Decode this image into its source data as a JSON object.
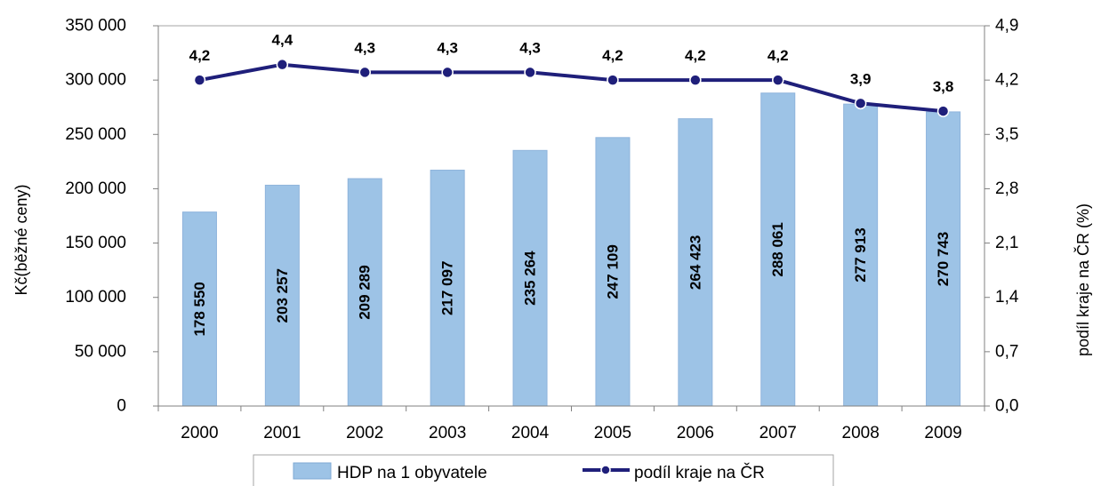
{
  "chart_data": {
    "type": "bar",
    "categories": [
      "2000",
      "2001",
      "2002",
      "2003",
      "2004",
      "2005",
      "2006",
      "2007",
      "2008",
      "2009"
    ],
    "series": [
      {
        "name": "HDP na 1 obyvatele",
        "type": "bar",
        "axis": "left",
        "values": [
          178550,
          203257,
          209289,
          217097,
          235264,
          247109,
          264423,
          288061,
          277913,
          270743
        ],
        "labels": [
          "178 550",
          "203 257",
          "209 289",
          "217 097",
          "235 264",
          "247 109",
          "264 423",
          "288 061",
          "277 913",
          "270 743"
        ],
        "color": "#9DC3E6"
      },
      {
        "name": "podíl kraje na ČR",
        "type": "line",
        "axis": "right",
        "values": [
          4.2,
          4.4,
          4.3,
          4.3,
          4.3,
          4.2,
          4.2,
          4.2,
          3.9,
          3.8
        ],
        "labels": [
          "4,2",
          "4,4",
          "4,3",
          "4,3",
          "4,3",
          "4,2",
          "4,2",
          "4,2",
          "3,9",
          "3,8"
        ],
        "color": "#1F1F7A"
      }
    ],
    "ylabel_left": "Kč(běžné ceny)",
    "ylabel_right": "podíl kraje na ČR (%)",
    "ylim_left": [
      0,
      350000
    ],
    "ylim_right": [
      0,
      4.9
    ],
    "yticks_left": [
      "0",
      "50 000",
      "100 000",
      "150 000",
      "200 000",
      "250 000",
      "300 000",
      "350 000"
    ],
    "yticks_right": [
      "0,0",
      "0,7",
      "1,4",
      "2,1",
      "2,8",
      "3,5",
      "4,2",
      "4,9"
    ],
    "grid": false,
    "legend": "bottom"
  }
}
